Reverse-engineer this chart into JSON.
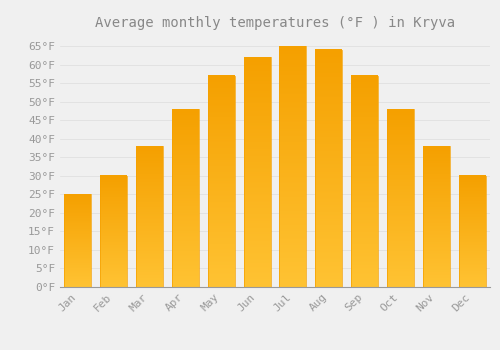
{
  "title": "Average monthly temperatures (°F ) in Kryva",
  "months": [
    "Jan",
    "Feb",
    "Mar",
    "Apr",
    "May",
    "Jun",
    "Jul",
    "Aug",
    "Sep",
    "Oct",
    "Nov",
    "Dec"
  ],
  "values": [
    25,
    30,
    38,
    48,
    57,
    62,
    65,
    64,
    57,
    48,
    38,
    30
  ],
  "bar_color_top": "#FFC333",
  "bar_color_bottom": "#F5A000",
  "background_color": "#F0F0F0",
  "grid_color": "#DDDDDD",
  "text_color": "#999999",
  "title_color": "#888888",
  "ylim": [
    0,
    68
  ],
  "yticks": [
    0,
    5,
    10,
    15,
    20,
    25,
    30,
    35,
    40,
    45,
    50,
    55,
    60,
    65
  ],
  "ytick_labels": [
    "0°F",
    "5°F",
    "10°F",
    "15°F",
    "20°F",
    "25°F",
    "30°F",
    "35°F",
    "40°F",
    "45°F",
    "50°F",
    "55°F",
    "60°F",
    "65°F"
  ],
  "font_family": "monospace",
  "title_fontsize": 10,
  "tick_fontsize": 8,
  "bar_width": 0.75
}
